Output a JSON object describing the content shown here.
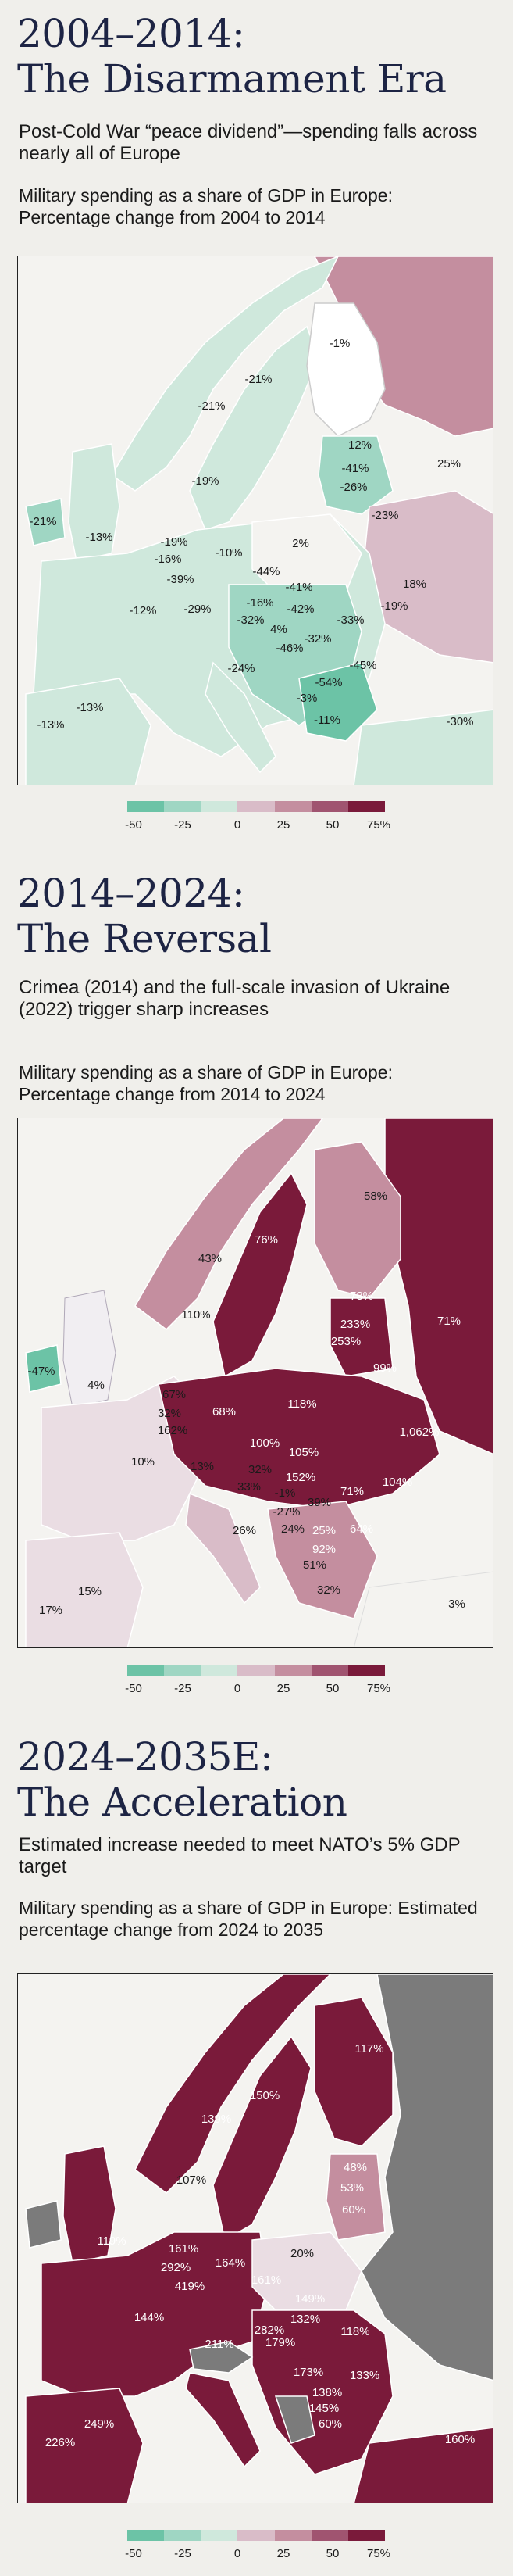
{
  "legend": {
    "ticks": [
      "-50",
      "-25",
      "0",
      "25",
      "50",
      "75%"
    ],
    "colors": [
      "#6cc3a6",
      "#9fd6c3",
      "#cfe8dc",
      "#d9bcc8",
      "#c48e9f",
      "#a05470",
      "#7a1a3a"
    ]
  },
  "sections": [
    {
      "title_line1": "2004–2014:",
      "title_line2": "The Disarmament Era",
      "subtitle": "Post-Cold War “peace dividend”—spending falls across nearly all of Europe",
      "description": "Military spending as a share of GDP in Europe: Percentage change from 2004 to 2014",
      "labels": [
        {
          "text": "-1%"
        },
        {
          "text": "-21%"
        },
        {
          "text": "-21%"
        },
        {
          "text": "12%"
        },
        {
          "text": "25%"
        },
        {
          "text": "-19%"
        },
        {
          "text": "-41%"
        },
        {
          "text": "-26%"
        },
        {
          "text": "-21%"
        },
        {
          "text": "-13%"
        },
        {
          "text": "-23%"
        },
        {
          "text": "-19%"
        },
        {
          "text": "2%"
        },
        {
          "text": "-16%"
        },
        {
          "text": "-10%"
        },
        {
          "text": "-39%"
        },
        {
          "text": "-44%"
        },
        {
          "text": "-41%"
        },
        {
          "text": "18%"
        },
        {
          "text": "-12%"
        },
        {
          "text": "-29%"
        },
        {
          "text": "-16%"
        },
        {
          "text": "-42%"
        },
        {
          "text": "-32%"
        },
        {
          "text": "-33%"
        },
        {
          "text": "-19%"
        },
        {
          "text": "4%"
        },
        {
          "text": "-32%"
        },
        {
          "text": "-46%"
        },
        {
          "text": "-24%"
        },
        {
          "text": "-45%"
        },
        {
          "text": "-54%"
        },
        {
          "text": "-3%"
        },
        {
          "text": "-13%"
        },
        {
          "text": "-11%"
        },
        {
          "text": "-13%"
        },
        {
          "text": "-30%"
        }
      ]
    },
    {
      "title_line1": "2014–2024:",
      "title_line2": "The Reversal",
      "subtitle": "Crimea (2014) and the full-scale invasion of Ukraine (2022) trigger sharp increases",
      "description": "Military spending as a share of GDP in Europe: Percentage change from 2014 to 2024",
      "labels": [
        {
          "text": "58%"
        },
        {
          "text": "76%"
        },
        {
          "text": "43%"
        },
        {
          "text": "78%"
        },
        {
          "text": "110%"
        },
        {
          "text": "233%"
        },
        {
          "text": "71%"
        },
        {
          "text": "253%"
        },
        {
          "text": "99%"
        },
        {
          "text": "-47%"
        },
        {
          "text": "4%"
        },
        {
          "text": "67%"
        },
        {
          "text": "68%"
        },
        {
          "text": "118%"
        },
        {
          "text": "32%"
        },
        {
          "text": "162%"
        },
        {
          "text": "1,062%"
        },
        {
          "text": "100%"
        },
        {
          "text": "105%"
        },
        {
          "text": "10%"
        },
        {
          "text": "32%"
        },
        {
          "text": "152%"
        },
        {
          "text": "104%"
        },
        {
          "text": "13%"
        },
        {
          "text": "33%"
        },
        {
          "text": "-1%"
        },
        {
          "text": "71%"
        },
        {
          "text": "-27%"
        },
        {
          "text": "39%"
        },
        {
          "text": "26%"
        },
        {
          "text": "24%"
        },
        {
          "text": "25%"
        },
        {
          "text": "64%"
        },
        {
          "text": "92%"
        },
        {
          "text": "51%"
        },
        {
          "text": "15%"
        },
        {
          "text": "32%"
        },
        {
          "text": "17%"
        },
        {
          "text": "3%"
        }
      ]
    },
    {
      "title_line1": "2024–2035E:",
      "title_line2": "The Acceleration",
      "subtitle": "Estimated increase needed to meet NATO’s 5% GDP target",
      "description": "Military spending as a share of GDP in Europe: Estimated percentage change from 2024 to 2035",
      "labels": [
        {
          "text": "117%"
        },
        {
          "text": "150%"
        },
        {
          "text": "139%"
        },
        {
          "text": "48%"
        },
        {
          "text": "53%"
        },
        {
          "text": "107%"
        },
        {
          "text": "60%"
        },
        {
          "text": "119%"
        },
        {
          "text": "161%"
        },
        {
          "text": "164%"
        },
        {
          "text": "20%"
        },
        {
          "text": "292%"
        },
        {
          "text": "419%"
        },
        {
          "text": "161%"
        },
        {
          "text": "144%"
        },
        {
          "text": "149%"
        },
        {
          "text": "132%"
        },
        {
          "text": "118%"
        },
        {
          "text": "282%"
        },
        {
          "text": "211%"
        },
        {
          "text": "179%"
        },
        {
          "text": "173%"
        },
        {
          "text": "133%"
        },
        {
          "text": "138%"
        },
        {
          "text": "145%"
        },
        {
          "text": "249%"
        },
        {
          "text": "60%"
        },
        {
          "text": "226%"
        },
        {
          "text": "160%"
        }
      ]
    }
  ]
}
